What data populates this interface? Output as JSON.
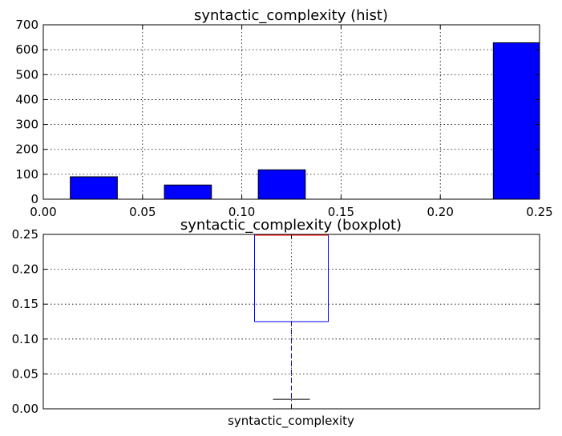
{
  "chart_data": [
    {
      "type": "bar",
      "subtype": "histogram",
      "title": "syntactic_complexity (hist)",
      "xlabel": "",
      "ylabel": "",
      "xlim": [
        0.0,
        0.25
      ],
      "ylim": [
        0,
        700
      ],
      "xticks": [
        "0.00",
        "0.05",
        "0.10",
        "0.15",
        "0.20",
        "0.25"
      ],
      "yticks": [
        "0",
        "100",
        "200",
        "300",
        "400",
        "500",
        "600",
        "700"
      ],
      "bar_color": "#0000ff",
      "grid": true,
      "bins": [
        {
          "x0": 0.0136,
          "x1": 0.0373,
          "count": 90
        },
        {
          "x0": 0.061,
          "x1": 0.0847,
          "count": 57
        },
        {
          "x0": 0.1083,
          "x1": 0.132,
          "count": 118
        },
        {
          "x0": 0.2267,
          "x1": 0.2504,
          "count": 628
        }
      ]
    },
    {
      "type": "boxplot",
      "title": "syntactic_complexity (boxplot)",
      "category": "syntactic_complexity",
      "ylim": [
        0.0,
        0.25
      ],
      "yticks": [
        "0.00",
        "0.05",
        "0.10",
        "0.15",
        "0.20",
        "0.25"
      ],
      "box_color": "#0000ff",
      "median_color": "#ff0000",
      "grid": true,
      "stats": {
        "whisker_low": 0.0136,
        "q1": 0.125,
        "median": 0.25,
        "q3": 0.25,
        "whisker_high": 0.25
      }
    }
  ]
}
